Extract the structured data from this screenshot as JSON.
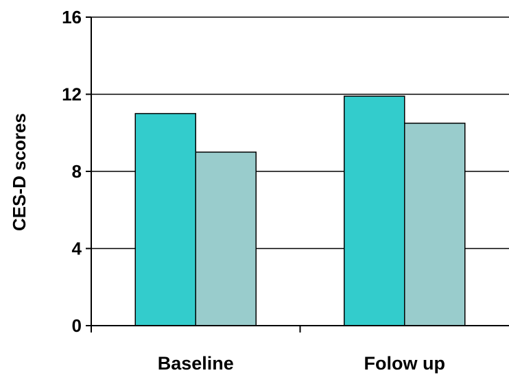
{
  "chart_data": {
    "type": "bar",
    "title": "",
    "xlabel": "",
    "ylabel": "CES-D scores",
    "ylim": [
      0,
      16
    ],
    "yticks": [
      0,
      4,
      8,
      12,
      16
    ],
    "grid": true,
    "categories": [
      "Baseline",
      "Folow up"
    ],
    "series": [
      {
        "values": [
          11.0,
          11.9
        ],
        "color": "#33CCCC"
      },
      {
        "values": [
          9.0,
          10.5
        ],
        "color": "#99CCCC"
      }
    ]
  }
}
